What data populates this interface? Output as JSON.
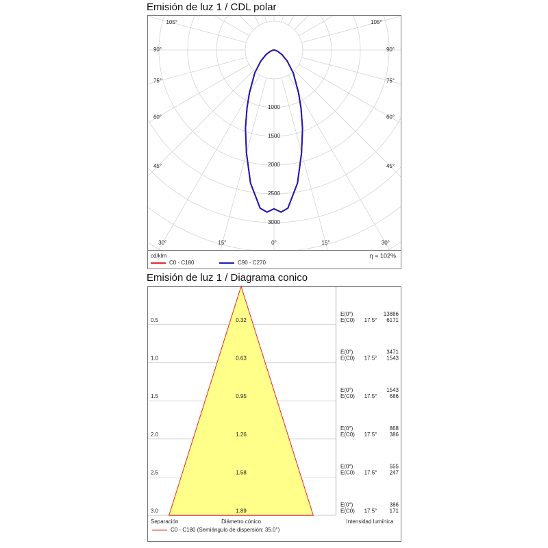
{
  "chart_data": [
    {
      "type": "polar",
      "title": "Emisión de luz 1 / CDL polar",
      "unit": "cd/klm",
      "efficiency": "η = 102%",
      "x": [
        -90,
        -80,
        -70,
        -60,
        -50,
        -40,
        -30,
        -25,
        -20,
        -15,
        -10,
        -5,
        -2.5,
        0,
        2.5,
        5,
        10,
        15,
        20,
        25,
        30,
        40,
        50,
        60,
        70,
        80,
        90
      ],
      "series": [
        {
          "name": "C0 - C180",
          "color": "#e8262b",
          "values": [
            0,
            20,
            70,
            160,
            300,
            520,
            850,
            1110,
            1450,
            1850,
            2350,
            2760,
            2820,
            2760,
            2820,
            2760,
            2350,
            1850,
            1450,
            1110,
            850,
            520,
            300,
            160,
            70,
            20,
            0
          ]
        },
        {
          "name": "C90 - C270",
          "color": "#1c1ab8",
          "values": [
            0,
            20,
            70,
            160,
            300,
            520,
            850,
            1110,
            1450,
            1850,
            2350,
            2760,
            2820,
            2760,
            2820,
            2760,
            2350,
            1850,
            1450,
            1110,
            850,
            520,
            300,
            160,
            70,
            20,
            0
          ]
        }
      ],
      "rlim": [
        0,
        3500
      ],
      "rticks": [
        1000,
        1500,
        2000,
        2500,
        3000
      ],
      "xticks": [
        {
          "value": 0,
          "label": "0°"
        },
        {
          "value": 15,
          "label": "15°"
        },
        {
          "value": 30,
          "label": "30°"
        },
        {
          "value": 45,
          "label": "45°"
        },
        {
          "value": 60,
          "label": "60°"
        },
        {
          "value": 75,
          "label": "75°"
        },
        {
          "value": 90,
          "label": "90°"
        },
        {
          "value": 105,
          "label": "105°"
        }
      ],
      "grid": true
    },
    {
      "type": "cone",
      "title": "Emisión de luz 1 / Diagrama conico",
      "headers": [
        "Separación",
        "Diámetro cónico",
        "Intensidad lumínica"
      ],
      "center_label": "E(0°)",
      "c0_label": "E(C0)",
      "angle_label": "17.5°",
      "legend": {
        "name": "C0 - C180 (Semiángulo de dispersión: 35.0°)",
        "color": "#e8262b"
      },
      "fill": "#ffff8a",
      "rows": [
        {
          "separation": "0.5",
          "diameter": 0.32,
          "center": 13886,
          "c0": 6171
        },
        {
          "separation": "1.0",
          "diameter": 0.63,
          "center": 3471,
          "c0": 1543
        },
        {
          "separation": "1.5",
          "diameter": 0.95,
          "center": 1543,
          "c0": 686
        },
        {
          "separation": "2.0",
          "diameter": 1.26,
          "center": 868,
          "c0": 386
        },
        {
          "separation": "2.5",
          "diameter": 1.58,
          "center": 555,
          "c0": 247
        },
        {
          "separation": "3.0",
          "diameter": 1.89,
          "center": 386,
          "c0": 171
        }
      ]
    }
  ]
}
